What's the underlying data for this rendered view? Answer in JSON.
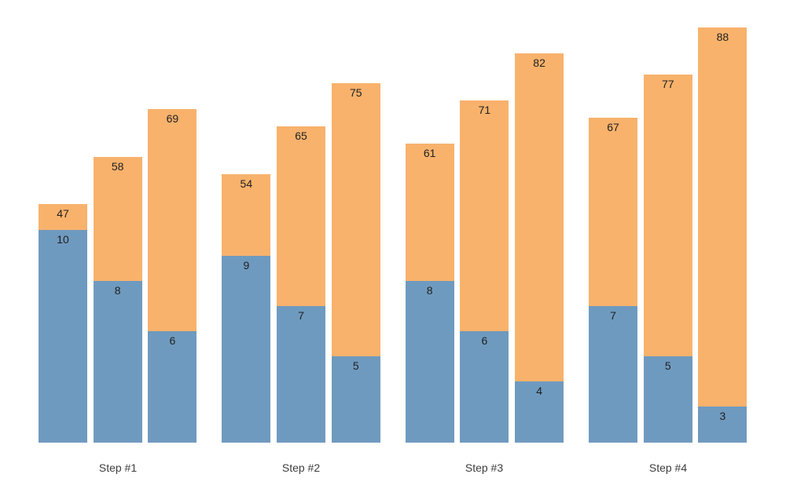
{
  "chart_data": {
    "type": "bar",
    "title": "",
    "xlabel": "",
    "ylabel": "",
    "legend": "none",
    "axes_visible": false,
    "gridlines": false,
    "categories": [
      "Step #1",
      "Step #2",
      "Step #3",
      "Step #4"
    ],
    "groups": [
      {
        "label": "Step #1",
        "bars": [
          {
            "total": 47,
            "inner": 10
          },
          {
            "total": 58,
            "inner": 8
          },
          {
            "total": 69,
            "inner": 6
          }
        ]
      },
      {
        "label": "Step #2",
        "bars": [
          {
            "total": 54,
            "inner": 9
          },
          {
            "total": 65,
            "inner": 7
          },
          {
            "total": 75,
            "inner": 5
          }
        ]
      },
      {
        "label": "Step #3",
        "bars": [
          {
            "total": 61,
            "inner": 8
          },
          {
            "total": 71,
            "inner": 6
          },
          {
            "total": 82,
            "inner": 4
          }
        ]
      },
      {
        "label": "Step #4",
        "bars": [
          {
            "total": 67,
            "inner": 7
          },
          {
            "total": 77,
            "inner": 5
          },
          {
            "total": 88,
            "inner": 3
          }
        ]
      }
    ],
    "colors": {
      "total_bar": "#f8b26c",
      "inner_bar": "#6f9abf",
      "value_label": "#1f1f1f",
      "category_label": "#3d3d3d",
      "background": "#ffffff"
    }
  }
}
